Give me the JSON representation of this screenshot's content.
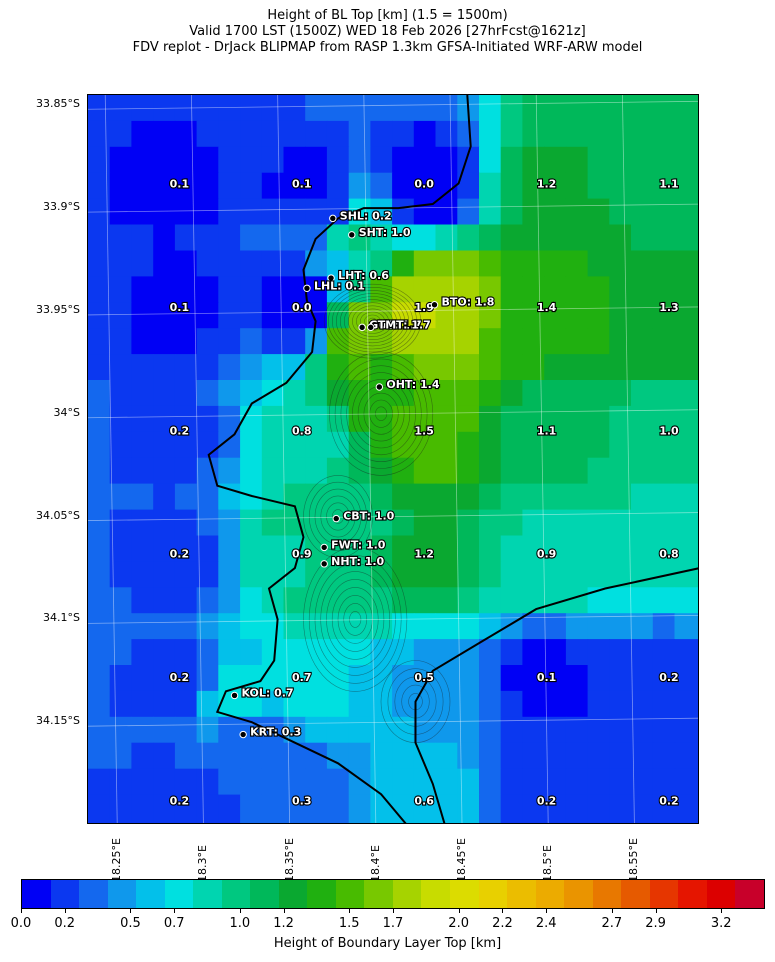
{
  "title": {
    "line1": "Height of BL Top [km] (1.5 = 1500m)",
    "line2": "Valid 1700 LST (1500Z) WED 18 Feb 2026 [27hrFcst@1621z]",
    "line3": "FDV replot - DrJack BLIPMAP from RASP 1.3km GFSA-Initiated WRF-ARW model"
  },
  "axes": {
    "lat_labels": [
      "33.85°S",
      "33.9°S",
      "33.95°S",
      "34°S",
      "34.05°S",
      "34.1°S",
      "34.15°S"
    ],
    "lat_values": [
      -33.85,
      -33.9,
      -33.95,
      -34.0,
      -34.05,
      -34.1,
      -34.15
    ],
    "lon_labels": [
      "18.25°E",
      "18.3°E",
      "18.35°E",
      "18.4°E",
      "18.45°E",
      "18.5°E",
      "18.55°E"
    ],
    "lon_values": [
      18.25,
      18.3,
      18.35,
      18.4,
      18.45,
      18.5,
      18.55
    ]
  },
  "map_extent": {
    "lon": [
      18.24,
      18.595
    ],
    "lat": [
      -34.2,
      -33.845
    ]
  },
  "grid_values": [
    {
      "lon": 18.293,
      "lat": -33.89,
      "text": "0.1"
    },
    {
      "lon": 18.364,
      "lat": -33.89,
      "text": "0.1"
    },
    {
      "lon": 18.435,
      "lat": -33.89,
      "text": "0.0"
    },
    {
      "lon": 18.506,
      "lat": -33.89,
      "text": "1.2"
    },
    {
      "lon": 18.577,
      "lat": -33.89,
      "text": "1.1"
    },
    {
      "lon": 18.293,
      "lat": -33.95,
      "text": "0.1"
    },
    {
      "lon": 18.364,
      "lat": -33.95,
      "text": "0.0"
    },
    {
      "lon": 18.435,
      "lat": -33.95,
      "text": "1.9"
    },
    {
      "lon": 18.506,
      "lat": -33.95,
      "text": "1.4"
    },
    {
      "lon": 18.577,
      "lat": -33.95,
      "text": "1.3"
    },
    {
      "lon": 18.293,
      "lat": -34.01,
      "text": "0.2"
    },
    {
      "lon": 18.364,
      "lat": -34.01,
      "text": "0.8"
    },
    {
      "lon": 18.435,
      "lat": -34.01,
      "text": "1.5"
    },
    {
      "lon": 18.506,
      "lat": -34.01,
      "text": "1.1"
    },
    {
      "lon": 18.577,
      "lat": -34.01,
      "text": "1.0"
    },
    {
      "lon": 18.293,
      "lat": -34.07,
      "text": "0.2"
    },
    {
      "lon": 18.364,
      "lat": -34.07,
      "text": "0.9"
    },
    {
      "lon": 18.435,
      "lat": -34.07,
      "text": "1.2"
    },
    {
      "lon": 18.506,
      "lat": -34.07,
      "text": "0.9"
    },
    {
      "lon": 18.577,
      "lat": -34.07,
      "text": "0.8"
    },
    {
      "lon": 18.293,
      "lat": -34.13,
      "text": "0.2"
    },
    {
      "lon": 18.364,
      "lat": -34.13,
      "text": "0.7"
    },
    {
      "lon": 18.435,
      "lat": -34.13,
      "text": "0.5"
    },
    {
      "lon": 18.506,
      "lat": -34.13,
      "text": "0.1"
    },
    {
      "lon": 18.577,
      "lat": -34.13,
      "text": "0.2"
    },
    {
      "lon": 18.293,
      "lat": -34.19,
      "text": "0.2"
    },
    {
      "lon": 18.364,
      "lat": -34.19,
      "text": "0.3"
    },
    {
      "lon": 18.435,
      "lat": -34.19,
      "text": "0.6"
    },
    {
      "lon": 18.506,
      "lat": -34.19,
      "text": "0.2"
    },
    {
      "lon": 18.577,
      "lat": -34.19,
      "text": "0.2"
    }
  ],
  "stations": [
    {
      "id": "SHL",
      "label": "SHL: 0.2",
      "lon": 18.382,
      "lat": -33.905
    },
    {
      "id": "SHT",
      "label": "SHT: 1.0",
      "lon": 18.393,
      "lat": -33.913
    },
    {
      "id": "LHT",
      "label": "LHT: 0.6",
      "lon": 18.381,
      "lat": -33.934
    },
    {
      "id": "LHL",
      "label": "LHL: 0.1",
      "lon": 18.367,
      "lat": -33.939
    },
    {
      "id": "BTO",
      "label": "BTO: 1.8",
      "lon": 18.441,
      "lat": -33.947
    },
    {
      "id": "GUT",
      "label": "GUT: 1.7",
      "lon": 18.399,
      "lat": -33.958
    },
    {
      "id": "TMT",
      "label": "TMT: 1.7",
      "lon": 18.404,
      "lat": -33.958
    },
    {
      "id": "OHT",
      "label": "OHT: 1.4",
      "lon": 18.409,
      "lat": -33.987
    },
    {
      "id": "CBT",
      "label": "CBT: 1.0",
      "lon": 18.384,
      "lat": -34.051
    },
    {
      "id": "FWT",
      "label": "FWT: 1.0",
      "lon": 18.377,
      "lat": -34.065
    },
    {
      "id": "NHT",
      "label": "NHT: 1.0",
      "lon": 18.377,
      "lat": -34.073
    },
    {
      "id": "KOL",
      "label": "KOL: 0.7",
      "lon": 18.325,
      "lat": -34.137
    },
    {
      "id": "KRT",
      "label": "KRT: 0.3",
      "lon": 18.33,
      "lat": -34.156
    }
  ],
  "colorbar": {
    "label": "Height of Boundary Layer Top [km]",
    "tick_labels": [
      "0.0",
      "0.2",
      "0.5",
      "0.7",
      "1.0",
      "1.2",
      "1.5",
      "1.7",
      "2.0",
      "2.2",
      "2.4",
      "2.7",
      "2.9",
      "3.2"
    ],
    "tick_values": [
      0.0,
      0.2,
      0.5,
      0.7,
      1.0,
      1.2,
      1.5,
      1.7,
      2.0,
      2.2,
      2.4,
      2.7,
      2.9,
      3.2
    ],
    "range": [
      0.0,
      3.4
    ],
    "colors": [
      "#0000f5",
      "#0b38f0",
      "#1468ee",
      "#0f98ec",
      "#03c0ea",
      "#00e0e0",
      "#00d5b0",
      "#00c880",
      "#00b85a",
      "#0aa830",
      "#20b010",
      "#48bb00",
      "#78c800",
      "#a6d300",
      "#c8dc00",
      "#dcdc00",
      "#e8d000",
      "#ebbd00",
      "#ecab00",
      "#ea9400",
      "#e87800",
      "#e65a00",
      "#e63600",
      "#e51500",
      "#dc0000",
      "#c8002a"
    ]
  }
}
